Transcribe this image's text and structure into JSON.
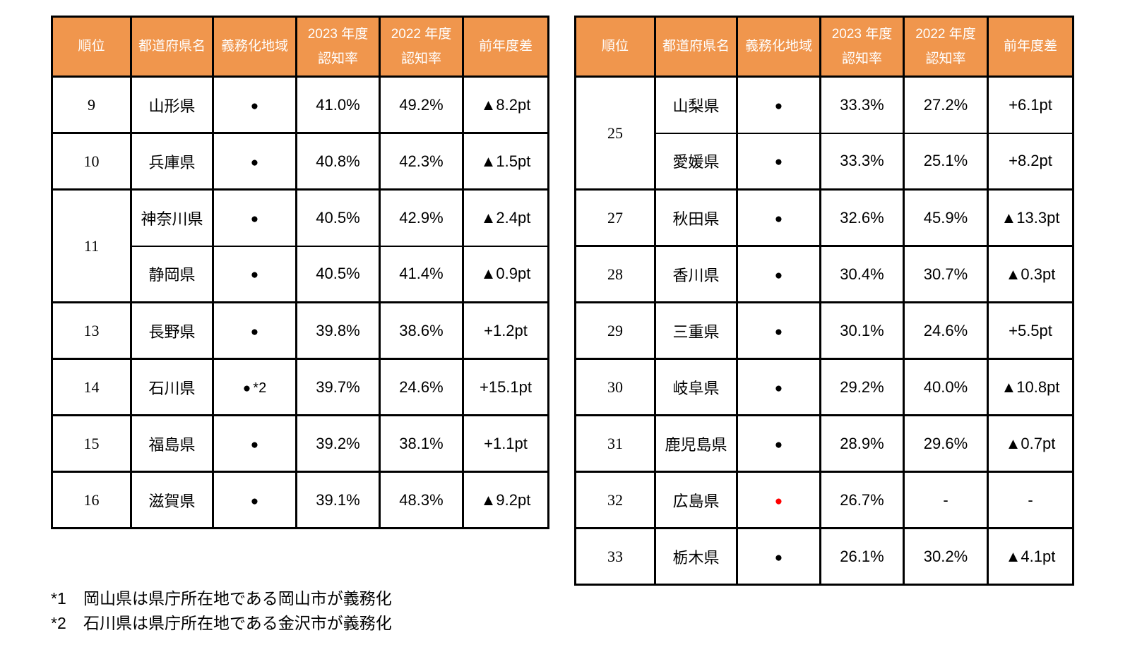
{
  "colors": {
    "header_bg": "#F0964D",
    "header_text": "#FFFFFF",
    "border": "#000000",
    "dot_red": "#FF0000"
  },
  "columns": [
    {
      "key": "rank",
      "lines": [
        "順位"
      ]
    },
    {
      "key": "prefecture",
      "lines": [
        "都道府県名"
      ]
    },
    {
      "key": "mandatory",
      "lines": [
        "義務化地域"
      ]
    },
    {
      "key": "rate2023",
      "lines": [
        "2023 年度",
        "認知率"
      ]
    },
    {
      "key": "rate2022",
      "lines": [
        "2022 年度",
        "認知率"
      ]
    },
    {
      "key": "diff",
      "lines": [
        "前年度差"
      ]
    }
  ],
  "tables": [
    {
      "id": "left",
      "rows": [
        {
          "rank": "9",
          "rank_span": 1,
          "cont": false,
          "prefecture": "山形県",
          "dot": "●",
          "dot_red": false,
          "dot_note": "",
          "rate2023": "41.0%",
          "rate2022": "49.2%",
          "diff": "▲8.2pt"
        },
        {
          "rank": "10",
          "rank_span": 1,
          "cont": false,
          "prefecture": "兵庫県",
          "dot": "●",
          "dot_red": false,
          "dot_note": "",
          "rate2023": "40.8%",
          "rate2022": "42.3%",
          "diff": "▲1.5pt"
        },
        {
          "rank": "11",
          "rank_span": 2,
          "cont": false,
          "prefecture": "神奈川県",
          "dot": "●",
          "dot_red": false,
          "dot_note": "",
          "rate2023": "40.5%",
          "rate2022": "42.9%",
          "diff": "▲2.4pt"
        },
        {
          "rank": null,
          "rank_span": 0,
          "cont": true,
          "prefecture": "静岡県",
          "dot": "●",
          "dot_red": false,
          "dot_note": "",
          "rate2023": "40.5%",
          "rate2022": "41.4%",
          "diff": "▲0.9pt"
        },
        {
          "rank": "13",
          "rank_span": 1,
          "cont": false,
          "prefecture": "長野県",
          "dot": "●",
          "dot_red": false,
          "dot_note": "",
          "rate2023": "39.8%",
          "rate2022": "38.6%",
          "diff": "+1.2pt"
        },
        {
          "rank": "14",
          "rank_span": 1,
          "cont": false,
          "prefecture": "石川県",
          "dot": "●",
          "dot_red": false,
          "dot_note": "*2",
          "rate2023": "39.7%",
          "rate2022": "24.6%",
          "diff": "+15.1pt"
        },
        {
          "rank": "15",
          "rank_span": 1,
          "cont": false,
          "prefecture": "福島県",
          "dot": "●",
          "dot_red": false,
          "dot_note": "",
          "rate2023": "39.2%",
          "rate2022": "38.1%",
          "diff": "+1.1pt"
        },
        {
          "rank": "16",
          "rank_span": 1,
          "cont": false,
          "prefecture": "滋賀県",
          "dot": "●",
          "dot_red": false,
          "dot_note": "",
          "rate2023": "39.1%",
          "rate2022": "48.3%",
          "diff": "▲9.2pt"
        }
      ]
    },
    {
      "id": "right",
      "rows": [
        {
          "rank": "25",
          "rank_span": 2,
          "cont": false,
          "prefecture": "山梨県",
          "dot": "●",
          "dot_red": false,
          "dot_note": "",
          "rate2023": "33.3%",
          "rate2022": "27.2%",
          "diff": "+6.1pt"
        },
        {
          "rank": null,
          "rank_span": 0,
          "cont": true,
          "prefecture": "愛媛県",
          "dot": "●",
          "dot_red": false,
          "dot_note": "",
          "rate2023": "33.3%",
          "rate2022": "25.1%",
          "diff": "+8.2pt"
        },
        {
          "rank": "27",
          "rank_span": 1,
          "cont": false,
          "prefecture": "秋田県",
          "dot": "●",
          "dot_red": false,
          "dot_note": "",
          "rate2023": "32.6%",
          "rate2022": "45.9%",
          "diff": "▲13.3pt"
        },
        {
          "rank": "28",
          "rank_span": 1,
          "cont": false,
          "prefecture": "香川県",
          "dot": "●",
          "dot_red": false,
          "dot_note": "",
          "rate2023": "30.4%",
          "rate2022": "30.7%",
          "diff": "▲0.3pt"
        },
        {
          "rank": "29",
          "rank_span": 1,
          "cont": false,
          "prefecture": "三重県",
          "dot": "●",
          "dot_red": false,
          "dot_note": "",
          "rate2023": "30.1%",
          "rate2022": "24.6%",
          "diff": "+5.5pt"
        },
        {
          "rank": "30",
          "rank_span": 1,
          "cont": false,
          "prefecture": "岐阜県",
          "dot": "●",
          "dot_red": false,
          "dot_note": "",
          "rate2023": "29.2%",
          "rate2022": "40.0%",
          "diff": "▲10.8pt"
        },
        {
          "rank": "31",
          "rank_span": 1,
          "cont": false,
          "prefecture": "鹿児島県",
          "dot": "●",
          "dot_red": false,
          "dot_note": "",
          "rate2023": "28.9%",
          "rate2022": "29.6%",
          "diff": "▲0.7pt"
        },
        {
          "rank": "32",
          "rank_span": 1,
          "cont": false,
          "prefecture": "広島県",
          "dot": "●",
          "dot_red": true,
          "dot_note": "",
          "rate2023": "26.7%",
          "rate2022": "-",
          "diff": "-"
        },
        {
          "rank": "33",
          "rank_span": 1,
          "cont": false,
          "prefecture": "栃木県",
          "dot": "●",
          "dot_red": false,
          "dot_note": "",
          "rate2023": "26.1%",
          "rate2022": "30.2%",
          "diff": "▲4.1pt"
        }
      ]
    }
  ],
  "footnotes": [
    {
      "label": "*1",
      "text": "岡山県は県庁所在地である岡山市が義務化"
    },
    {
      "label": "*2",
      "text": "石川県は県庁所在地である金沢市が義務化"
    }
  ]
}
